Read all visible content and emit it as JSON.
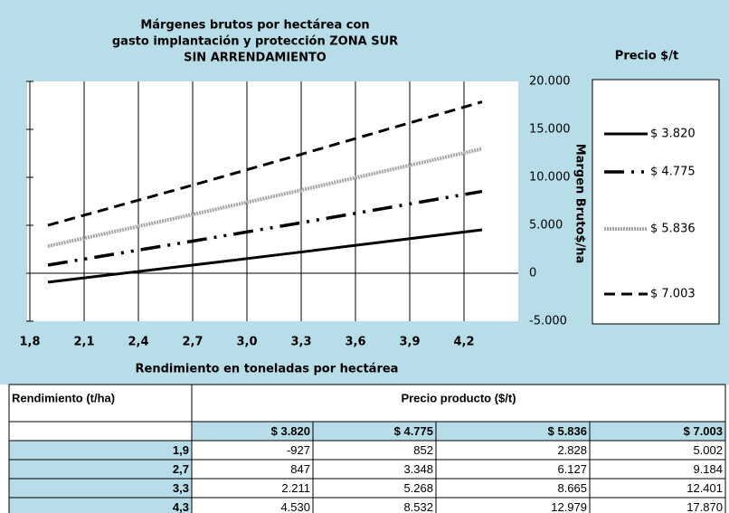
{
  "chart_data": {
    "type": "line",
    "title": [
      "Márgenes brutos por hectárea con",
      "gasto implantación y protección ZONA SUR",
      "SIN ARRENDAMIENTO"
    ],
    "x_label": "Rendimiento en toneladas por hectárea",
    "y_label": "Margen Bruto$/ha",
    "legend_title": "Precio $/t",
    "x": [
      1.9,
      2.7,
      3.3,
      4.3
    ],
    "series": [
      {
        "name": "$ 3.820",
        "color": "#000000",
        "style": "solid",
        "values": [
          -927,
          847,
          2211,
          4530
        ]
      },
      {
        "name": "$ 4.775",
        "color": "#000000",
        "style": "dashdotdot",
        "values": [
          852,
          3348,
          5268,
          8532
        ]
      },
      {
        "name": "$ 5.836",
        "color": "#a6a6a6",
        "style": "hatched",
        "values": [
          2828,
          6127,
          8665,
          12979
        ]
      },
      {
        "name": "$ 7.003",
        "color": "#000000",
        "style": "dash",
        "values": [
          5002,
          9184,
          12401,
          17870
        ]
      }
    ],
    "xlim": [
      1.8,
      4.5
    ],
    "xticks": [
      {
        "value": 1.8,
        "label": "1,8"
      },
      {
        "value": 2.1,
        "label": "2,1"
      },
      {
        "value": 2.4,
        "label": "2,4"
      },
      {
        "value": 2.7,
        "label": "2,7"
      },
      {
        "value": 3.0,
        "label": "3,0"
      },
      {
        "value": 3.3,
        "label": "3,3"
      },
      {
        "value": 3.6,
        "label": "3,6"
      },
      {
        "value": 3.9,
        "label": "3,9"
      },
      {
        "value": 4.2,
        "label": "4,2"
      }
    ],
    "ylim": [
      -5000,
      20000
    ],
    "yticks": [
      {
        "value": -5000,
        "label": "-5.000"
      },
      0,
      {
        "value": 5000,
        "label": "5.000"
      },
      {
        "value": 10000,
        "label": "10.000"
      },
      {
        "value": 15000,
        "label": "15.000"
      },
      {
        "value": 20000,
        "label": "20.000"
      }
    ],
    "grid": true,
    "legend": "right"
  },
  "table": {
    "header": [
      "Rendimiento (t/ha)",
      "Precio producto ($/t)"
    ],
    "columns": [
      "$ 3.820",
      "$ 4.775",
      "$ 5.836",
      "$ 7.003"
    ],
    "rows": [
      [
        "1,9",
        "-927",
        "852",
        "2.828",
        "5.002"
      ],
      [
        "2,7",
        "847",
        "3.348",
        "6.127",
        "9.184"
      ],
      [
        "3,3",
        "2.211",
        "5.268",
        "8.665",
        "12.401"
      ],
      [
        "4,3",
        "4.530",
        "8.532",
        "12.979",
        "17.870"
      ]
    ]
  }
}
